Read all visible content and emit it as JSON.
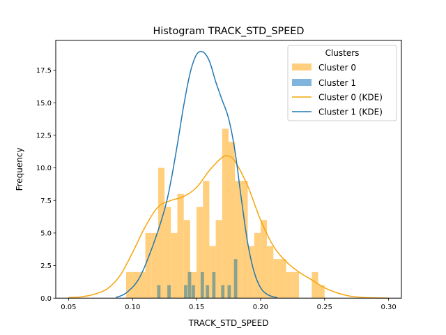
{
  "chart_data": {
    "type": "histogram",
    "title": "Histogram TRACK_STD_SPEED",
    "xlabel": "TRACK_STD_SPEED",
    "ylabel": "Frequency",
    "xlim": [
      0.04,
      0.31
    ],
    "ylim": [
      0,
      19.8
    ],
    "xticks": [
      "0.05",
      "0.10",
      "0.15",
      "0.20",
      "0.25",
      "0.30"
    ],
    "yticks": [
      "0.0",
      "2.5",
      "5.0",
      "7.5",
      "10.0",
      "12.5",
      "15.0",
      "17.5"
    ],
    "legend": {
      "title": "Clusters",
      "position": "top-right",
      "entries": [
        "Cluster 0",
        "Cluster 1",
        "Cluster 0 (KDE)",
        "Cluster 1 (KDE)"
      ]
    },
    "colors": {
      "cluster0": "#f5a50a",
      "cluster0_bar": "#ffcf7d",
      "cluster1": "#1f77b4",
      "cluster1_bar": "#80b4dc",
      "overlap": "#8ba38e"
    },
    "cluster0_bins": [
      {
        "x0": 0.095,
        "x1": 0.1,
        "count": 2
      },
      {
        "x0": 0.1,
        "x1": 0.105,
        "count": 2
      },
      {
        "x0": 0.105,
        "x1": 0.11,
        "count": 2
      },
      {
        "x0": 0.11,
        "x1": 0.115,
        "count": 5
      },
      {
        "x0": 0.115,
        "x1": 0.12,
        "count": 5
      },
      {
        "x0": 0.12,
        "x1": 0.125,
        "count": 10
      },
      {
        "x0": 0.125,
        "x1": 0.13,
        "count": 7
      },
      {
        "x0": 0.13,
        "x1": 0.135,
        "count": 5
      },
      {
        "x0": 0.135,
        "x1": 0.14,
        "count": 8
      },
      {
        "x0": 0.14,
        "x1": 0.145,
        "count": 6
      },
      {
        "x0": 0.145,
        "x1": 0.15,
        "count": 2
      },
      {
        "x0": 0.15,
        "x1": 0.155,
        "count": 7
      },
      {
        "x0": 0.155,
        "x1": 0.16,
        "count": 9
      },
      {
        "x0": 0.16,
        "x1": 0.165,
        "count": 4
      },
      {
        "x0": 0.165,
        "x1": 0.17,
        "count": 6
      },
      {
        "x0": 0.17,
        "x1": 0.175,
        "count": 13
      },
      {
        "x0": 0.175,
        "x1": 0.18,
        "count": 12
      },
      {
        "x0": 0.18,
        "x1": 0.185,
        "count": 9
      },
      {
        "x0": 0.185,
        "x1": 0.19,
        "count": 9
      },
      {
        "x0": 0.19,
        "x1": 0.195,
        "count": 4
      },
      {
        "x0": 0.195,
        "x1": 0.2,
        "count": 5
      },
      {
        "x0": 0.2,
        "x1": 0.205,
        "count": 6
      },
      {
        "x0": 0.205,
        "x1": 0.21,
        "count": 4
      },
      {
        "x0": 0.21,
        "x1": 0.215,
        "count": 3
      },
      {
        "x0": 0.215,
        "x1": 0.22,
        "count": 3
      },
      {
        "x0": 0.22,
        "x1": 0.225,
        "count": 2
      },
      {
        "x0": 0.225,
        "x1": 0.23,
        "count": 2
      },
      {
        "x0": 0.24,
        "x1": 0.245,
        "count": 2
      },
      {
        "x0": 0.245,
        "x1": 0.25,
        "count": 1
      }
    ],
    "cluster1_bars": [
      {
        "x": 0.1205,
        "count": 1
      },
      {
        "x": 0.1285,
        "count": 1
      },
      {
        "x": 0.1415,
        "count": 1
      },
      {
        "x": 0.1445,
        "count": 2
      },
      {
        "x": 0.1475,
        "count": 1
      },
      {
        "x": 0.1545,
        "count": 2
      },
      {
        "x": 0.1585,
        "count": 1
      },
      {
        "x": 0.1635,
        "count": 2
      },
      {
        "x": 0.1705,
        "count": 1
      },
      {
        "x": 0.1755,
        "count": 1
      },
      {
        "x": 0.1805,
        "count": 3
      }
    ],
    "kde_cluster0": {
      "x": [
        0.05,
        0.06,
        0.07,
        0.08,
        0.09,
        0.1,
        0.11,
        0.12,
        0.13,
        0.14,
        0.15,
        0.16,
        0.17,
        0.175,
        0.18,
        0.19,
        0.2,
        0.21,
        0.22,
        0.23,
        0.24,
        0.25,
        0.26,
        0.27,
        0.28,
        0.29,
        0.3
      ],
      "y": [
        0.05,
        0.1,
        0.3,
        0.7,
        1.7,
        3.5,
        5.5,
        7.0,
        7.5,
        7.8,
        8.5,
        9.8,
        10.8,
        10.9,
        10.5,
        8.6,
        6.0,
        4.0,
        2.8,
        2.0,
        1.4,
        0.8,
        0.4,
        0.15,
        0.05,
        0.02,
        0.0
      ]
    },
    "kde_cluster1": {
      "x": [
        0.087,
        0.095,
        0.105,
        0.115,
        0.125,
        0.13,
        0.135,
        0.14,
        0.145,
        0.15,
        0.155,
        0.16,
        0.165,
        0.17,
        0.175,
        0.18,
        0.185,
        0.19,
        0.195,
        0.2,
        0.205,
        0.21,
        0.213
      ],
      "y": [
        0.05,
        0.4,
        1.5,
        3.8,
        6.8,
        9.0,
        11.8,
        14.8,
        17.3,
        18.7,
        18.9,
        18.2,
        16.6,
        15.2,
        13.8,
        11.3,
        7.6,
        4.2,
        2.0,
        0.8,
        0.3,
        0.1,
        0.05
      ]
    }
  }
}
